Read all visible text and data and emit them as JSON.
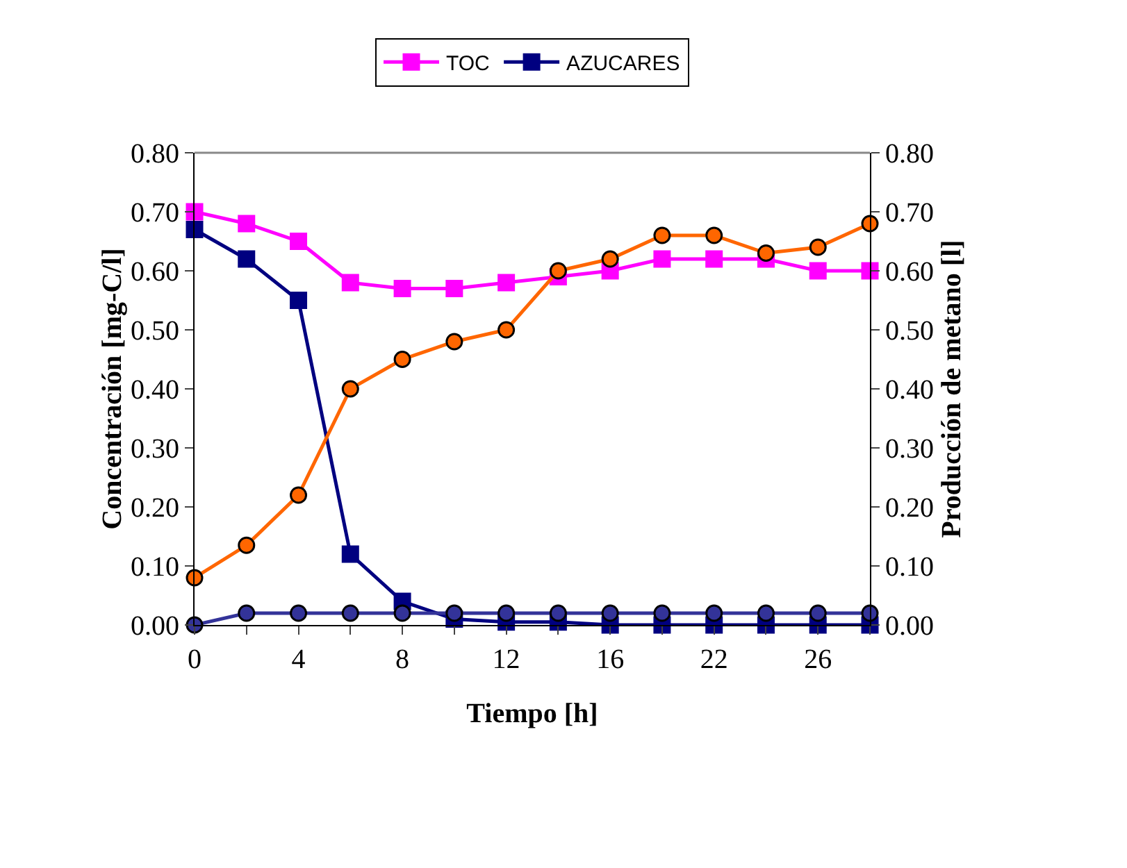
{
  "chart_data": {
    "type": "line",
    "xlabel": "Tiempo [h]",
    "ylabel": "Concentración [mg-C/l]",
    "y2label": "Producción de metano [l]",
    "categories": [
      "0",
      null,
      "4",
      null,
      "8",
      null,
      "12",
      null,
      "16",
      null,
      "22",
      null,
      "26",
      null
    ],
    "series": [
      {
        "name": "TOC",
        "color": "#ff00ff",
        "marker": "square",
        "values": [
          0.7,
          0.68,
          0.65,
          0.58,
          0.57,
          0.57,
          0.58,
          0.59,
          0.6,
          0.62,
          0.62,
          0.62,
          0.6,
          0.6
        ]
      },
      {
        "name": "AZUCARES",
        "color": "#000080",
        "marker": "square",
        "values": [
          0.67,
          0.62,
          0.55,
          0.12,
          0.04,
          0.01,
          0.005,
          0.005,
          0,
          0,
          0,
          0,
          0,
          0
        ]
      },
      {
        "color": "#ff6600",
        "marker": "circle",
        "axis": "y2",
        "values": [
          0.08,
          0.135,
          0.22,
          0.4,
          0.45,
          0.48,
          0.5,
          0.6,
          0.62,
          0.66,
          0.66,
          0.63,
          0.64,
          0.68
        ]
      },
      {
        "color": "#333399",
        "marker": "circle",
        "values": [
          0,
          0.02,
          0.02,
          0.02,
          0.02,
          0.02,
          0.02,
          0.02,
          0.02,
          0.02,
          0.02,
          0.02,
          0.02,
          0.02
        ]
      }
    ],
    "ylim": [
      0,
      0.8
    ],
    "yticks": [
      {
        "value": 0,
        "label": "0.00"
      },
      {
        "value": 0.1,
        "label": "0.10"
      },
      {
        "value": 0.2,
        "label": "0.20"
      },
      {
        "value": 0.3,
        "label": "0.30"
      },
      {
        "value": 0.4,
        "label": "0.40"
      },
      {
        "value": 0.5,
        "label": "0.50"
      },
      {
        "value": 0.6,
        "label": "0.60"
      },
      {
        "value": 0.7,
        "label": "0.70"
      },
      {
        "value": 0.8,
        "label": "0.80"
      }
    ],
    "y2lim": [
      0,
      0.8
    ],
    "y2ticks": [
      {
        "value": 0,
        "label": "0.00"
      },
      {
        "value": 0.1,
        "label": "0.10"
      },
      {
        "value": 0.2,
        "label": "0.20"
      },
      {
        "value": 0.3,
        "label": "0.30"
      },
      {
        "value": 0.4,
        "label": "0.40"
      },
      {
        "value": 0.5,
        "label": "0.50"
      },
      {
        "value": 0.6,
        "label": "0.60"
      },
      {
        "value": 0.7,
        "label": "0.70"
      },
      {
        "value": 0.8,
        "label": "0.80"
      }
    ],
    "grid": false,
    "legend": "top"
  }
}
